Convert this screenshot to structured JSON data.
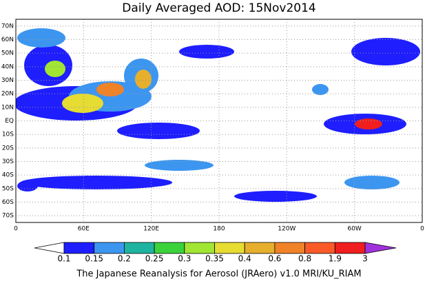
{
  "title": "Daily Averaged AOD: 15Nov2014",
  "map": {
    "lat_labels": [
      "70N",
      "60N",
      "50N",
      "40N",
      "30N",
      "20N",
      "10N",
      "EQ",
      "10S",
      "20S",
      "30S",
      "40S",
      "50S",
      "60S",
      "70S"
    ],
    "lon_labels": [
      "0",
      "60E",
      "120E",
      "180",
      "120W",
      "60W",
      "0"
    ]
  },
  "colorbar": {
    "labels": [
      "0.1",
      "0.15",
      "0.2",
      "0.25",
      "0.3",
      "0.35",
      "0.4",
      "0.6",
      "0.8",
      "1.9",
      "3"
    ],
    "colors": [
      "#ffffff",
      "#1e1eff",
      "#3c96f0",
      "#1eb4a0",
      "#3cd23c",
      "#a0e632",
      "#e6dc32",
      "#e6af2d",
      "#f08228",
      "#fa5a28",
      "#f01e1e",
      "#a032dc"
    ]
  },
  "footer": "The Japanese Reanalysis for Aerosol (JRAero) v1.0 MRI/KU_RIAM"
}
